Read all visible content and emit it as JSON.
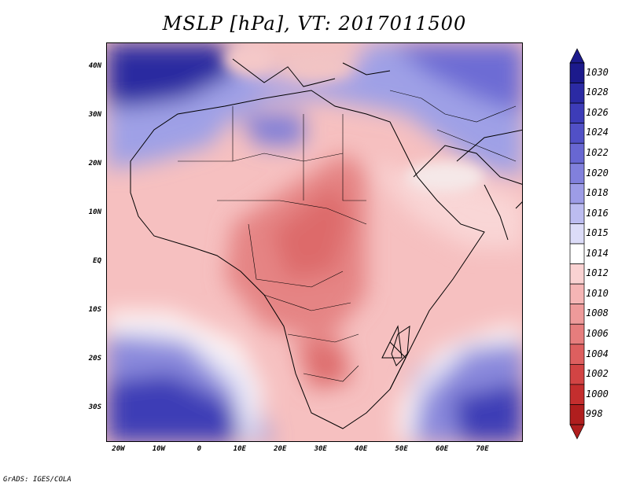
{
  "title": "MSLP [hPa], VT: 2017011500",
  "footer": "GrADS: IGES/COLA",
  "lat_ticks": [
    {
      "label": "40N",
      "lat": 40
    },
    {
      "label": "30N",
      "lat": 30
    },
    {
      "label": "20N",
      "lat": 20
    },
    {
      "label": "10N",
      "lat": 10
    },
    {
      "label": "EQ",
      "lat": 0
    },
    {
      "label": "10S",
      "lat": -10
    },
    {
      "label": "20S",
      "lat": -20
    },
    {
      "label": "30S",
      "lat": -30
    }
  ],
  "lon_ticks": [
    {
      "label": "20W",
      "lon": -20
    },
    {
      "label": "10W",
      "lon": -10
    },
    {
      "label": "0",
      "lon": 0
    },
    {
      "label": "10E",
      "lon": 10
    },
    {
      "label": "20E",
      "lon": 20
    },
    {
      "label": "30E",
      "lon": 30
    },
    {
      "label": "40E",
      "lon": 40
    },
    {
      "label": "50E",
      "lon": 50
    },
    {
      "label": "60E",
      "lon": 60
    },
    {
      "label": "70E",
      "lon": 70
    }
  ],
  "extent": {
    "lon_min": -23,
    "lon_max": 80,
    "lat_min": -37,
    "lat_max": 45
  },
  "colorbar": {
    "labels": [
      "1030",
      "1028",
      "1026",
      "1024",
      "1022",
      "1020",
      "1018",
      "1016",
      "1015",
      "1014",
      "1012",
      "1010",
      "1008",
      "1006",
      "1004",
      "1002",
      "1000",
      "998"
    ],
    "colors": [
      "#1c1a8c",
      "#2b2aa4",
      "#3d3cb8",
      "#5150c6",
      "#6867d2",
      "#8180dc",
      "#9d9ce6",
      "#bcbcf0",
      "#dcdcf8",
      "#ffffff",
      "#fad2d2",
      "#f5b5b5",
      "#ee9a9a",
      "#e67d7d",
      "#dd5f5f",
      "#d24444",
      "#c42e2e",
      "#b01e1e"
    ]
  },
  "fields": {
    "high_regions": [
      {
        "name": "mediterranean-high",
        "level": 1028
      },
      {
        "name": "arabian-high",
        "level": 1022
      },
      {
        "name": "sw-atlantic-high",
        "level": 1030
      },
      {
        "name": "sw-indian-high",
        "level": 1030
      }
    ],
    "low_regions": [
      {
        "name": "central-africa-low",
        "level": 1006
      },
      {
        "name": "kalahari-low",
        "level": 1004
      }
    ]
  }
}
